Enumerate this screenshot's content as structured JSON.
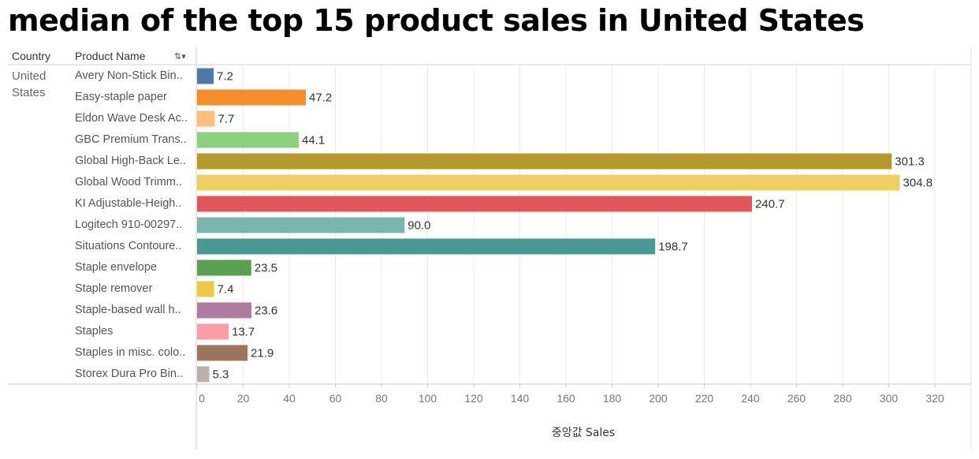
{
  "title": "median of the top 15 product sales in United States",
  "headers": {
    "country": "Country",
    "product": "Product Name"
  },
  "country_value": "United States",
  "chart_data": {
    "type": "bar",
    "orientation": "horizontal",
    "xlabel": "중앙값 Sales",
    "ylabel": "Product Name",
    "xlim": [
      0,
      330
    ],
    "xticks": [
      0,
      20,
      40,
      60,
      80,
      100,
      120,
      140,
      160,
      180,
      200,
      220,
      240,
      260,
      280,
      300,
      320
    ],
    "grid": true,
    "categories": [
      "Avery Non-Stick Bin..",
      "Easy-staple paper",
      "Eldon Wave Desk Ac..",
      "GBC Premium Trans..",
      "Global High-Back Le..",
      "Global Wood Trimm..",
      "KI Adjustable-Heigh..",
      "Logitech 910-00297..",
      "Situations Contoure..",
      "Staple envelope",
      "Staple remover",
      "Staple-based wall h..",
      "Staples",
      "Staples in misc. colo..",
      "Storex Dura Pro Bin.."
    ],
    "values": [
      7.2,
      47.2,
      7.7,
      44.1,
      301.3,
      304.8,
      240.7,
      90.0,
      198.7,
      23.5,
      7.4,
      23.6,
      13.7,
      21.9,
      5.3
    ],
    "value_labels": [
      "7.2",
      "47.2",
      "7.7",
      "44.1",
      "301.3",
      "304.8",
      "240.7",
      "90.0",
      "198.7",
      "23.5",
      "7.4",
      "23.6",
      "13.7",
      "21.9",
      "5.3"
    ],
    "colors": [
      "#4e79a7",
      "#f28e2b",
      "#ffbe7d",
      "#8cd17d",
      "#b6992d",
      "#f1ce63",
      "#e15759",
      "#79b6b0",
      "#499894",
      "#59a14f",
      "#edc948",
      "#b07aa1",
      "#ff9da7",
      "#9c755f",
      "#bab0ac"
    ]
  }
}
